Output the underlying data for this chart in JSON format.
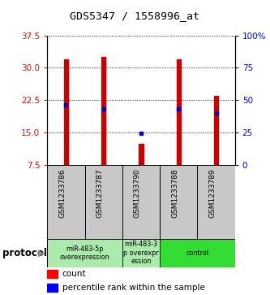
{
  "title": "GDS5347 / 1558996_at",
  "samples": [
    "GSM1233786",
    "GSM1233787",
    "GSM1233790",
    "GSM1233788",
    "GSM1233789"
  ],
  "bar_tops": [
    32.0,
    32.5,
    12.5,
    32.0,
    23.5
  ],
  "bar_bottom": 7.5,
  "blue_marker_y": [
    21.5,
    20.5,
    14.8,
    20.5,
    19.5
  ],
  "left_yticks": [
    7.5,
    15.0,
    22.5,
    30.0,
    37.5
  ],
  "right_ytick_vals": [
    0,
    25,
    50,
    75,
    100
  ],
  "right_ytick_labels": [
    "0",
    "25",
    "50",
    "75",
    "100%"
  ],
  "ylim_left": [
    7.5,
    37.5
  ],
  "ylim_right": [
    0,
    100
  ],
  "bar_color": "#cc0000",
  "blue_color": "#0000cc",
  "bar_width": 0.12,
  "grid_color": "#000000",
  "sample_label_bg": "#c8c8c8",
  "group_extents": [
    {
      "start": 0,
      "end": 1,
      "label": "miR-483-5p\noverexpression",
      "color": "#aaeaaa"
    },
    {
      "start": 2,
      "end": 2,
      "label": "miR-483-3\np overexpr\nession",
      "color": "#aaeaaa"
    },
    {
      "start": 3,
      "end": 4,
      "label": "control",
      "color": "#33dd33"
    }
  ],
  "protocol_label": "protocol",
  "legend_count_label": "count",
  "legend_pct_label": "percentile rank within the sample"
}
